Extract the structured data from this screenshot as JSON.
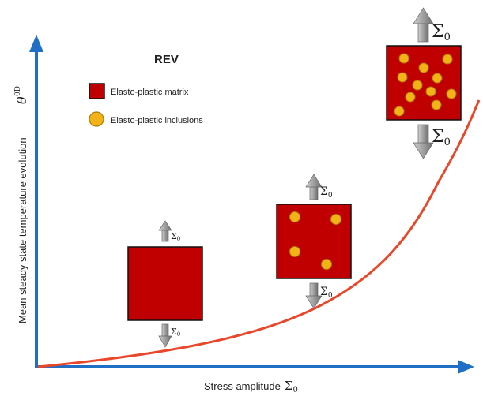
{
  "legend": {
    "title": "REV",
    "matrix_label": "Elasto-plastic matrix",
    "inclusion_label": "Elasto-plastic inclusions"
  },
  "axes": {
    "x_label": "Stress amplitude",
    "x_symbol": "Σ",
    "x_subscript": "0",
    "y_label": "Mean steady state temperature evolution",
    "y_symbol": "θ",
    "y_superscript": "0D"
  },
  "load": {
    "symbol": "Σ",
    "subscript": "0"
  },
  "colors": {
    "axis": "#1f6fc6",
    "curve": "#e8472b",
    "matrix": "#c00000",
    "inclusion": "#f2b318",
    "arrow": "#8a8a8a"
  }
}
